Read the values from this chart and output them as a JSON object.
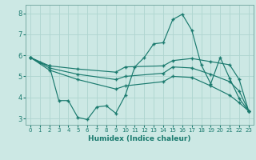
{
  "title": "",
  "xlabel": "Humidex (Indice chaleur)",
  "ylabel": "",
  "bg_color": "#cce8e4",
  "line_color": "#1a7a6e",
  "grid_color": "#aed4cf",
  "xlim": [
    -0.5,
    23.5
  ],
  "ylim": [
    2.7,
    8.4
  ],
  "xticks": [
    0,
    1,
    2,
    3,
    4,
    5,
    6,
    7,
    8,
    9,
    10,
    11,
    12,
    13,
    14,
    15,
    16,
    17,
    18,
    19,
    20,
    21,
    22,
    23
  ],
  "yticks": [
    3,
    4,
    5,
    6,
    7,
    8
  ],
  "lines": [
    {
      "x": [
        0,
        1,
        2,
        3,
        4,
        5,
        6,
        7,
        8,
        9,
        10,
        11,
        12,
        13,
        14,
        15,
        16,
        17,
        18,
        19,
        20,
        21,
        22,
        23
      ],
      "y": [
        5.9,
        5.65,
        5.5,
        3.85,
        3.85,
        3.05,
        2.95,
        3.55,
        3.6,
        3.25,
        4.1,
        5.45,
        5.9,
        6.55,
        6.6,
        7.7,
        7.95,
        7.2,
        5.55,
        4.65,
        5.9,
        4.9,
        3.95,
        3.35
      ]
    },
    {
      "x": [
        0,
        2,
        5,
        9,
        10,
        14,
        15,
        17,
        19,
        21,
        22,
        23
      ],
      "y": [
        5.9,
        5.5,
        5.35,
        5.2,
        5.45,
        5.5,
        5.75,
        5.85,
        5.7,
        5.55,
        4.85,
        3.35
      ]
    },
    {
      "x": [
        0,
        2,
        5,
        9,
        10,
        14,
        15,
        17,
        19,
        21,
        22,
        23
      ],
      "y": [
        5.9,
        5.4,
        5.1,
        4.85,
        5.0,
        5.15,
        5.45,
        5.4,
        5.1,
        4.75,
        4.3,
        3.35
      ]
    },
    {
      "x": [
        0,
        2,
        5,
        9,
        10,
        14,
        15,
        17,
        19,
        21,
        22,
        23
      ],
      "y": [
        5.9,
        5.3,
        4.85,
        4.4,
        4.55,
        4.75,
        5.0,
        4.95,
        4.55,
        4.1,
        3.75,
        3.35
      ]
    }
  ]
}
